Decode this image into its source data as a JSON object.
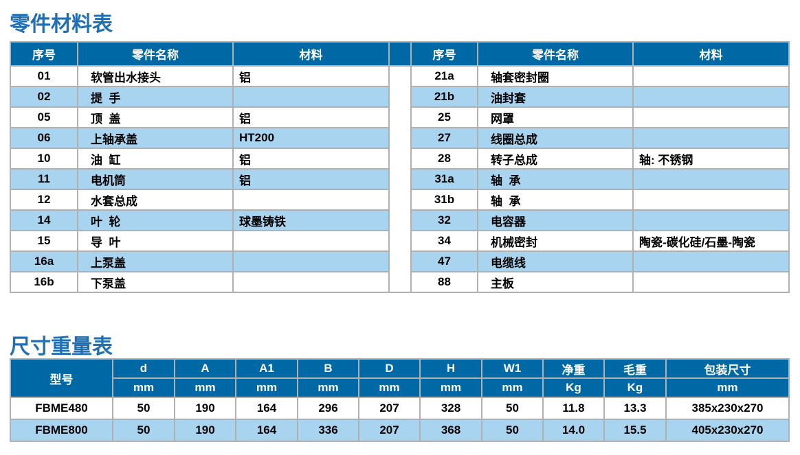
{
  "parts_title": "零件材料表",
  "parts_headers": [
    "序号",
    "零件名称",
    "材料"
  ],
  "parts_left": [
    [
      "01",
      "软管出水接头",
      "铝"
    ],
    [
      "02",
      "提  手",
      ""
    ],
    [
      "05",
      "顶  盖",
      "铝"
    ],
    [
      "06",
      "上轴承盖",
      "HT200"
    ],
    [
      "10",
      "油  缸",
      "铝"
    ],
    [
      "11",
      "电机筒",
      "铝"
    ],
    [
      "12",
      "水套总成",
      ""
    ],
    [
      "14",
      "叶  轮",
      "球墨铸铁"
    ],
    [
      "15",
      "导  叶",
      ""
    ],
    [
      "16a",
      "上泵盖",
      ""
    ],
    [
      "16b",
      "下泵盖",
      ""
    ]
  ],
  "parts_right": [
    [
      "21a",
      "轴套密封圈",
      ""
    ],
    [
      "21b",
      "油封套",
      ""
    ],
    [
      "25",
      "网罩",
      ""
    ],
    [
      "27",
      "线圈总成",
      ""
    ],
    [
      "28",
      "转子总成",
      "轴: 不锈钢"
    ],
    [
      "31a",
      "轴  承",
      ""
    ],
    [
      "31b",
      "轴  承",
      ""
    ],
    [
      "32",
      "电容器",
      ""
    ],
    [
      "34",
      "机械密封",
      "陶瓷-碳化硅/石墨-陶瓷"
    ],
    [
      "47",
      "电缆线",
      ""
    ],
    [
      "88",
      "主板",
      ""
    ]
  ],
  "dims_title": "尺寸重量表",
  "dims_model_header": "型号",
  "dims_headers": [
    "d",
    "A",
    "A1",
    "B",
    "D",
    "H",
    "W1",
    "净重",
    "毛重",
    "包装尺寸"
  ],
  "dims_units": [
    "mm",
    "mm",
    "mm",
    "mm",
    "mm",
    "mm",
    "mm",
    "Kg",
    "Kg",
    "mm"
  ],
  "dims_rows": [
    [
      "FBME480",
      "50",
      "190",
      "164",
      "296",
      "207",
      "328",
      "50",
      "11.8",
      "13.3",
      "385x230x270"
    ],
    [
      "FBME800",
      "50",
      "190",
      "164",
      "336",
      "207",
      "368",
      "50",
      "14.0",
      "15.5",
      "405x230x270"
    ]
  ],
  "colors": {
    "header": "#0068a5",
    "alt_row": "#a9d4ef",
    "title": "#1f6fb5"
  }
}
